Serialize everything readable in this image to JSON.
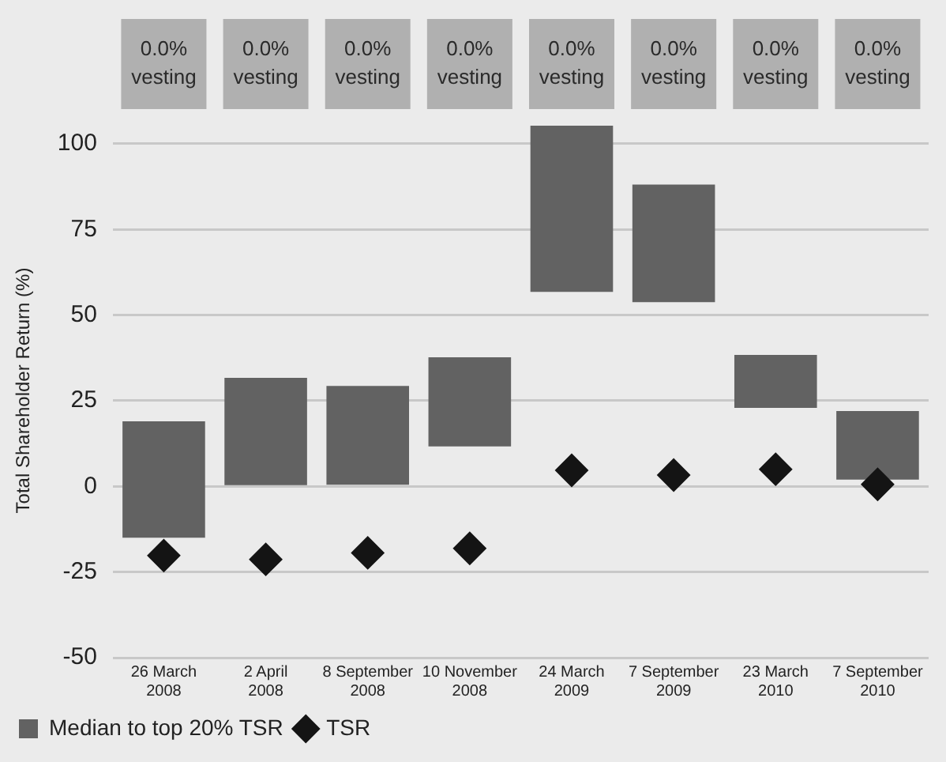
{
  "chart_data": {
    "type": "bar",
    "ylabel": "Total Shareholder Return (%)",
    "categories": [
      "26 March 2008",
      "2 April 2008",
      "8 September 2008",
      "10 November 2008",
      "24 March 2009",
      "7 September 2009",
      "23 March 2010",
      "7 September 2010"
    ],
    "series": [
      {
        "name": "Median to top 20% TSR",
        "color": "#626262",
        "base": [
          -15,
          0,
          0.5,
          11.7,
          56.8,
          53.8,
          22.9,
          2
        ],
        "values": [
          34,
          31.7,
          28.8,
          26,
          48.5,
          34.3,
          15.5,
          20
        ]
      },
      {
        "name": "TSR",
        "type": "scatter",
        "color": "#141414",
        "marker": "diamond",
        "values": [
          -20.2,
          -21.3,
          -19.4,
          -18.1,
          4.7,
          3.3,
          5,
          0.6
        ]
      }
    ],
    "ylim": [
      -50,
      106
    ],
    "yticks": [
      -50,
      -25,
      0,
      25,
      50,
      75,
      100
    ],
    "grid": "y",
    "legend": "bottom",
    "annotations": [
      "0.0% vesting",
      "0.0% vesting",
      "0.0% vesting",
      "0.0% vesting",
      "0.0% vesting",
      "0.0% vesting",
      "0.0% vesting",
      "0.0% vesting"
    ]
  }
}
